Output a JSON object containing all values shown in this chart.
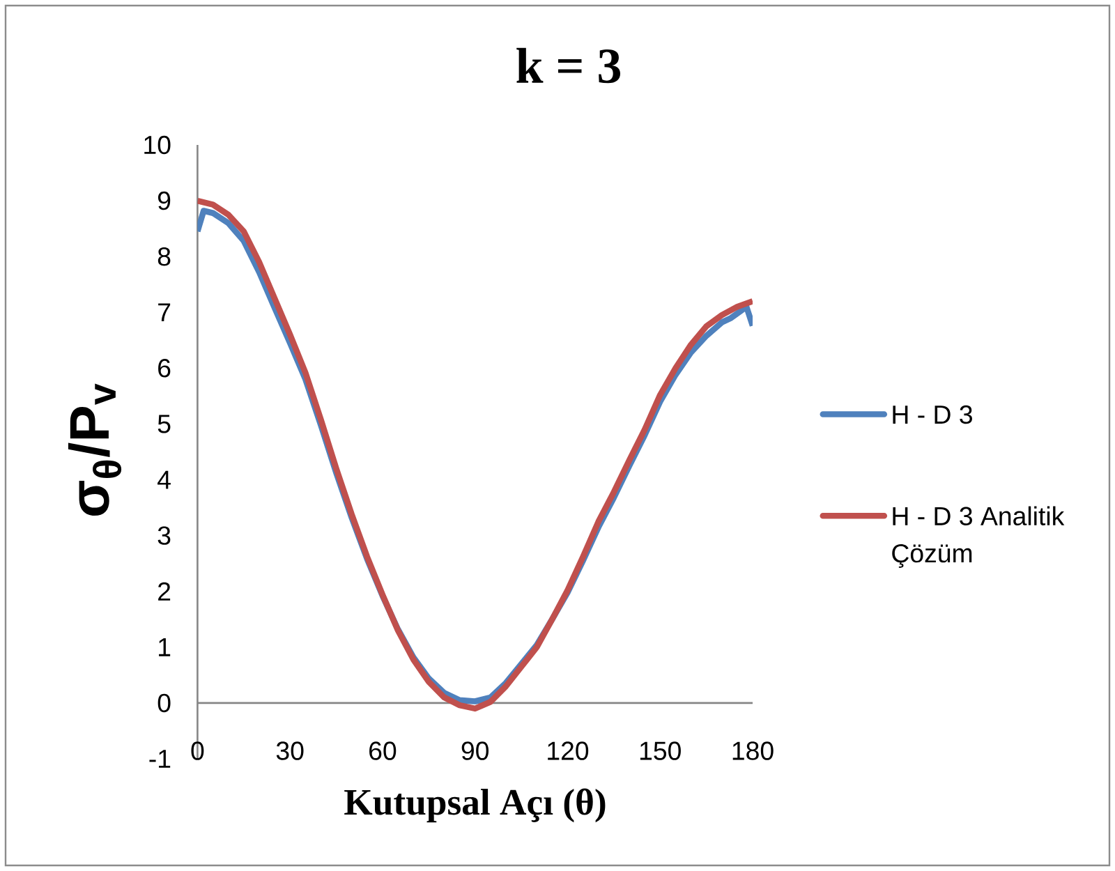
{
  "chart_data": {
    "type": "line",
    "title": "k = 3",
    "xlabel": "Kutupsal Açı (θ)",
    "ylabel": "σ$_{θ}$/P$_{v}$",
    "xlim": [
      0,
      180
    ],
    "xticks": [
      0,
      30,
      60,
      90,
      120,
      150,
      180
    ],
    "ylim": [
      -1,
      10
    ],
    "yticks": [
      -1,
      0,
      1,
      2,
      3,
      4,
      5,
      6,
      7,
      8,
      9,
      10
    ],
    "legend": "right",
    "series": [
      {
        "name": "H - D 3",
        "color": "#4f81bd",
        "x": [
          0,
          2,
          5,
          10,
          15,
          20,
          25,
          30,
          35,
          40,
          45,
          50,
          55,
          60,
          65,
          70,
          75,
          80,
          85,
          90,
          95,
          100,
          105,
          110,
          115,
          120,
          125,
          130,
          135,
          140,
          145,
          150,
          155,
          160,
          165,
          170,
          173,
          176,
          178,
          180
        ],
        "values": [
          8.45,
          8.82,
          8.78,
          8.6,
          8.28,
          7.72,
          7.08,
          6.45,
          5.8,
          4.98,
          4.12,
          3.32,
          2.58,
          1.92,
          1.32,
          0.82,
          0.44,
          0.18,
          0.05,
          0.03,
          0.1,
          0.36,
          0.7,
          1.04,
          1.5,
          1.98,
          2.55,
          3.15,
          3.68,
          4.25,
          4.8,
          5.4,
          5.88,
          6.28,
          6.58,
          6.82,
          6.9,
          7.02,
          7.1,
          6.76
        ]
      },
      {
        "name": "H - D 3 Analitik Çözüm",
        "color": "#c0504d",
        "x": [
          0,
          5,
          10,
          15,
          20,
          25,
          30,
          35,
          40,
          45,
          50,
          55,
          60,
          65,
          70,
          75,
          80,
          85,
          90,
          95,
          100,
          105,
          110,
          115,
          120,
          125,
          130,
          135,
          140,
          145,
          150,
          155,
          160,
          165,
          170,
          175,
          180
        ],
        "values": [
          9.0,
          8.93,
          8.75,
          8.45,
          7.9,
          7.25,
          6.6,
          5.92,
          5.08,
          4.2,
          3.38,
          2.62,
          1.94,
          1.3,
          0.78,
          0.38,
          0.1,
          -0.04,
          -0.1,
          0.02,
          0.3,
          0.65,
          1.0,
          1.5,
          2.02,
          2.62,
          3.25,
          3.78,
          4.35,
          4.9,
          5.52,
          6.0,
          6.42,
          6.75,
          6.95,
          7.1,
          7.2
        ]
      }
    ]
  }
}
